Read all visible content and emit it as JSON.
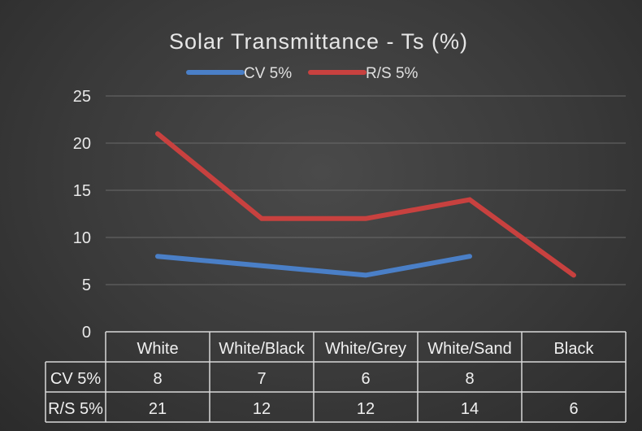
{
  "chart_data": {
    "type": "line",
    "title": "Solar Transmittance - Ts (%)",
    "categories": [
      "White",
      "White/Black",
      "White/Grey",
      "White/Sand",
      "Black"
    ],
    "series": [
      {
        "name": "CV 5%",
        "color": "#4a7fc7",
        "values": [
          8,
          7,
          6,
          8,
          null
        ]
      },
      {
        "name": "R/S 5%",
        "color": "#c8413f",
        "values": [
          21,
          12,
          12,
          14,
          6
        ]
      }
    ],
    "ylim": [
      0,
      25
    ],
    "yticks": [
      "0",
      "5",
      "10",
      "15",
      "20",
      "25"
    ],
    "grid": true,
    "legend": "top",
    "data_table": true
  }
}
